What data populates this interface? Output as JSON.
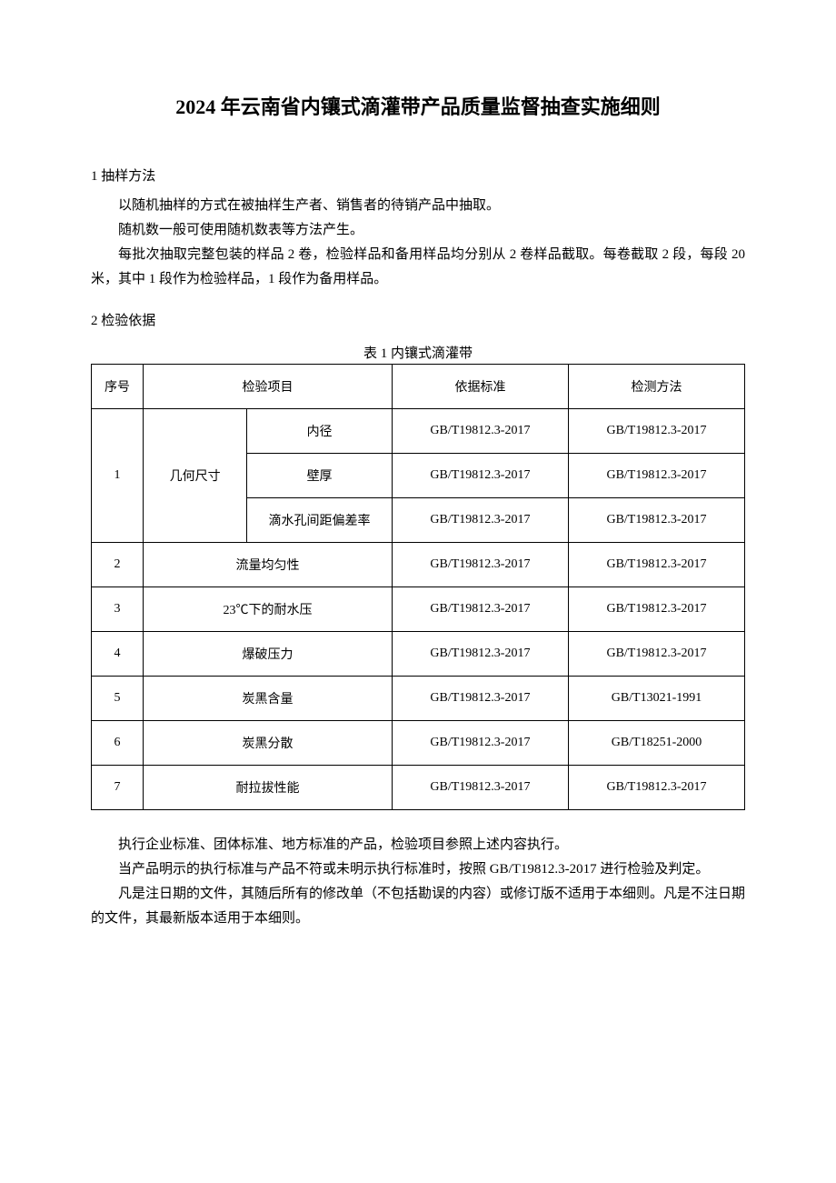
{
  "title": "2024 年云南省内镶式滴灌带产品质量监督抽查实施细则",
  "section1": {
    "heading": "1 抽样方法",
    "p1": "以随机抽样的方式在被抽样生产者、销售者的待销产品中抽取。",
    "p2": "随机数一般可使用随机数表等方法产生。",
    "p3": "每批次抽取完整包装的样品 2 卷，检验样品和备用样品均分别从 2 卷样品截取。每卷截取 2 段，每段 20 米，其中 1 段作为检验样品，1 段作为备用样品。"
  },
  "section2": {
    "heading": "2 检验依据",
    "tableCaption": "表 1 内镶式滴灌带",
    "headers": {
      "seq": "序号",
      "item": "检验项目",
      "standard": "依据标准",
      "method": "检测方法"
    },
    "rows": [
      {
        "seq": "1",
        "itemMain": "几何尺寸",
        "subs": [
          {
            "sub": "内径",
            "standard": "GB/T19812.3-2017",
            "method": "GB/T19812.3-2017"
          },
          {
            "sub": "壁厚",
            "standard": "GB/T19812.3-2017",
            "method": "GB/T19812.3-2017"
          },
          {
            "sub": "滴水孔间距偏差率",
            "standard": "GB/T19812.3-2017",
            "method": "GB/T19812.3-2017"
          }
        ]
      },
      {
        "seq": "2",
        "item": "流量均匀性",
        "standard": "GB/T19812.3-2017",
        "method": "GB/T19812.3-2017"
      },
      {
        "seq": "3",
        "item": "23℃下的耐水压",
        "standard": "GB/T19812.3-2017",
        "method": "GB/T19812.3-2017"
      },
      {
        "seq": "4",
        "item": "爆破压力",
        "standard": "GB/T19812.3-2017",
        "method": "GB/T19812.3-2017"
      },
      {
        "seq": "5",
        "item": "炭黑含量",
        "standard": "GB/T19812.3-2017",
        "method": "GB/T13021-1991"
      },
      {
        "seq": "6",
        "item": "炭黑分散",
        "standard": "GB/T19812.3-2017",
        "method": "GB/T18251-2000"
      },
      {
        "seq": "7",
        "item": "耐拉拔性能",
        "standard": "GB/T19812.3-2017",
        "method": "GB/T19812.3-2017"
      }
    ],
    "note1": "执行企业标准、团体标准、地方标准的产品，检验项目参照上述内容执行。",
    "note2": "当产品明示的执行标准与产品不符或未明示执行标准时，按照 GB/T19812.3-2017 进行检验及判定。",
    "note3": "凡是注日期的文件，其随后所有的修改单（不包括勘误的内容）或修订版不适用于本细则。凡是不注日期的文件，其最新版本适用于本细则。"
  }
}
